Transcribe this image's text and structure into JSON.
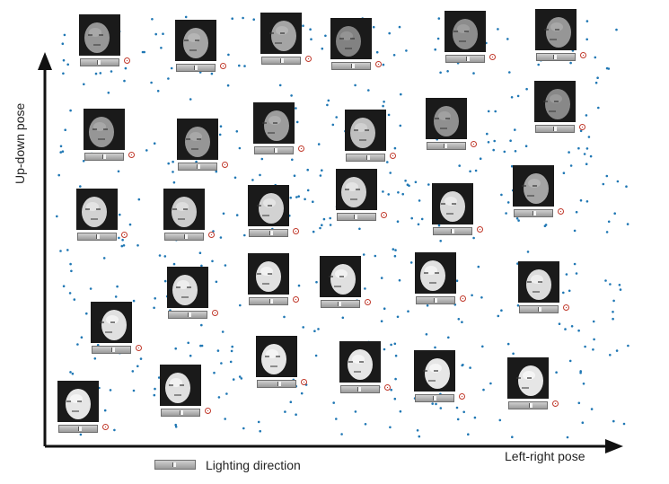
{
  "axes": {
    "y_label": "Up-down pose",
    "x_label": "Left-right pose"
  },
  "legend": {
    "label": "Lighting direction"
  },
  "colors": {
    "point": "#1f77b4",
    "axis": "#111111",
    "direction_marker": "#c0392b"
  },
  "faces_count_visible": 30
}
